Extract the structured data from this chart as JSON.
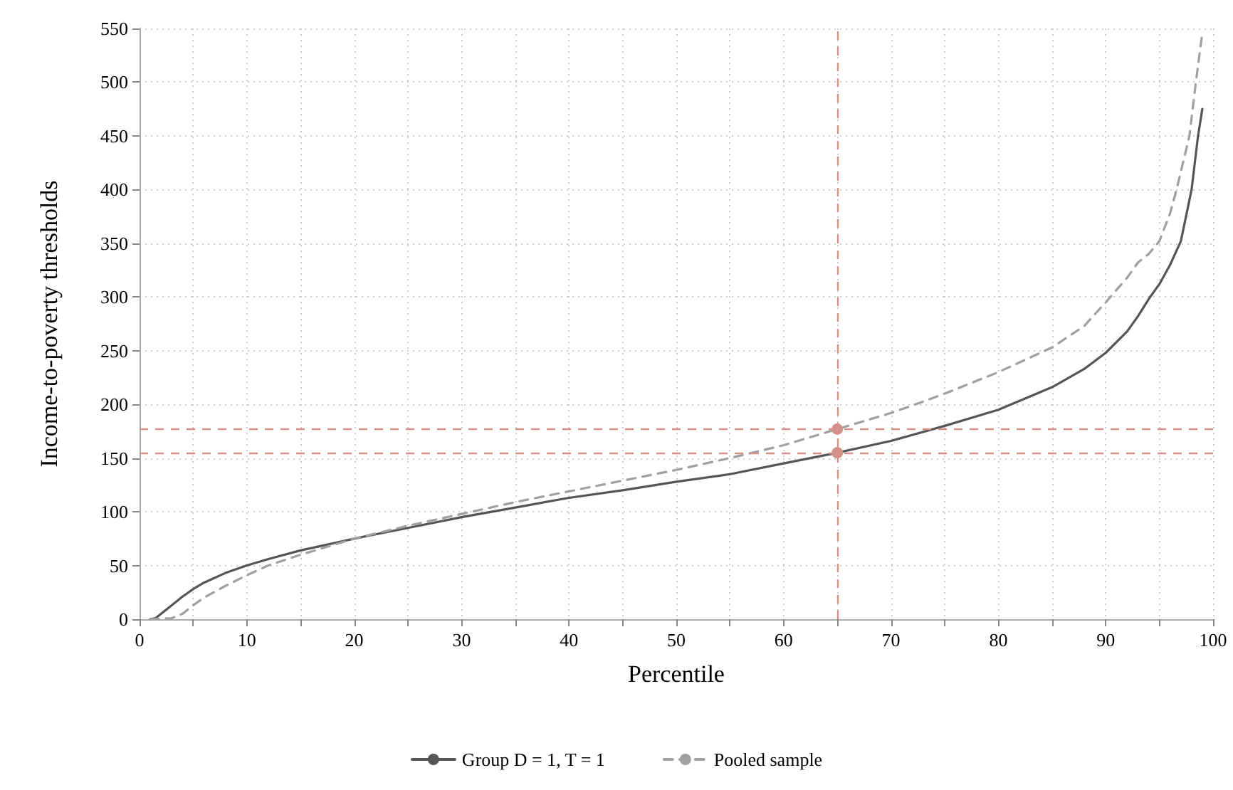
{
  "chart_data": {
    "type": "line",
    "xlabel": "Percentile",
    "ylabel": "Income-to-poverty thresholds",
    "xlim": [
      0,
      100
    ],
    "xticks": [
      0,
      {
        "value": 5,
        "label": null
      },
      10,
      {
        "value": 15,
        "label": null
      },
      20,
      {
        "value": 25,
        "label": null
      },
      30,
      {
        "value": 35,
        "label": null
      },
      40,
      {
        "value": 45,
        "label": null
      },
      50,
      {
        "value": 55,
        "label": null
      },
      60,
      {
        "value": 65,
        "label": null
      },
      70,
      {
        "value": 75,
        "label": null
      },
      80,
      {
        "value": 85,
        "label": null
      },
      90,
      {
        "value": 95,
        "label": null
      },
      100
    ],
    "ylim": [
      0,
      550
    ],
    "yticks": [
      0,
      50,
      100,
      150,
      200,
      250,
      300,
      350,
      400,
      450,
      500,
      550
    ],
    "grid": true,
    "legend": "bottom",
    "marker": "none",
    "series": [
      {
        "name": "Group D = 1, T = 1",
        "color": "#555555",
        "line_style": "solid",
        "x": [
          1,
          1.5,
          2,
          3,
          4,
          5,
          6,
          8,
          10,
          12,
          15,
          20,
          25,
          30,
          35,
          40,
          45,
          50,
          55,
          60,
          65,
          70,
          75,
          80,
          85,
          88,
          90,
          92,
          93,
          94,
          95,
          96,
          97,
          98,
          98.6,
          99
        ],
        "values": [
          0,
          1,
          5,
          13,
          21,
          28,
          34,
          43,
          50,
          56,
          64,
          75,
          85,
          95,
          104,
          113,
          120,
          128,
          135,
          145,
          155,
          166,
          180,
          195,
          216,
          233,
          248,
          268,
          282,
          298,
          312,
          330,
          352,
          400,
          450,
          475
        ]
      },
      {
        "name": "Pooled sample",
        "color": "#a0a0a0",
        "line_style": "dashed",
        "x": [
          1,
          3,
          4,
          5,
          6,
          8,
          10,
          12,
          15,
          20,
          25,
          30,
          35,
          40,
          45,
          50,
          55,
          60,
          65,
          70,
          72,
          75,
          80,
          85,
          88,
          90,
          92,
          93,
          94,
          95,
          96,
          96.6,
          97.2,
          97.8,
          98.4,
          99
        ],
        "values": [
          0,
          1,
          5,
          13,
          20,
          31,
          41,
          50,
          60,
          75,
          87,
          98,
          109,
          119,
          129,
          139,
          150,
          162,
          177,
          192,
          199,
          210,
          230,
          253,
          273,
          295,
          318,
          332,
          340,
          352,
          378,
          400,
          425,
          450,
          500,
          546
        ]
      },
      {
        "type": "scatter",
        "marker": "circle",
        "color": "#d4918a",
        "x": [
          65,
          65
        ],
        "values": [
          155,
          177
        ]
      }
    ],
    "ref_lines": [
      {
        "axis": "x",
        "value": 65,
        "color": "#d4918a",
        "line_style": "dashed"
      },
      {
        "axis": "y",
        "value": 155,
        "color": "#d4918a",
        "line_style": "dashed"
      },
      {
        "axis": "y",
        "value": 177,
        "color": "#d4918a",
        "line_style": "dashed"
      }
    ]
  }
}
